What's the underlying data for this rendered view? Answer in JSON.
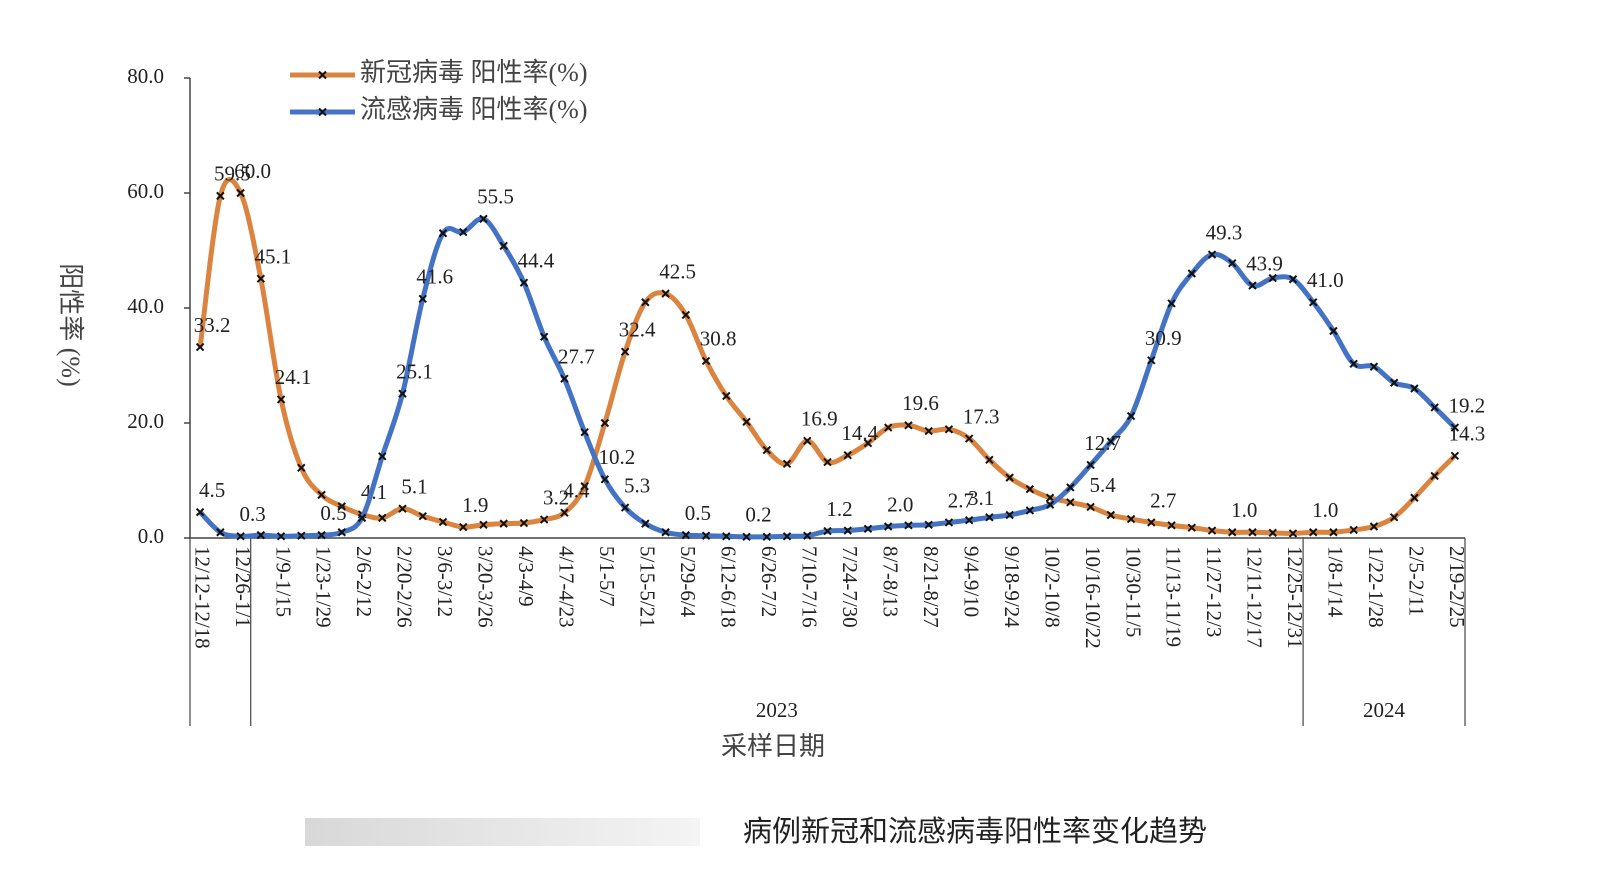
{
  "chart_data": {
    "type": "line",
    "title": "病例新冠和流感病毒阳性率变化趋势",
    "y_label": "阳性率 (%)",
    "x_label": "采样日期",
    "x_groups": [
      "2023",
      "2024"
    ],
    "categories": [
      "12/12-12/18",
      null,
      "12/26-1/1",
      null,
      "1/9-1/15",
      null,
      "1/23-1/29",
      null,
      "2/6-2/12",
      null,
      "2/20-2/26",
      null,
      "3/6-3/12",
      null,
      "3/20-3/26",
      null,
      "4/3-4/9",
      null,
      "4/17-4/23",
      null,
      "5/1-5/7",
      null,
      "5/15-5/21",
      null,
      "5/29-6/4",
      null,
      "6/12-6/18",
      null,
      "6/26-7/2",
      null,
      "7/10-7/16",
      null,
      "7/24-7/30",
      null,
      "8/7-8/13",
      null,
      "8/21-8/27",
      null,
      "9/4-9/10",
      null,
      "9/18-9/24",
      null,
      "10/2-10/8",
      null,
      "10/16-10/22",
      null,
      "10/30-11/5",
      null,
      "11/13-11/19",
      null,
      "11/27-12/3",
      null,
      "12/11-12/17",
      null,
      "12/25-12/31",
      null,
      "1/8-1/14",
      null,
      "1/22-1/28",
      null,
      "2/5-2/11",
      null,
      "2/19-2/25"
    ],
    "ylim": [
      0,
      80
    ],
    "yticks": [
      {
        "value": 0,
        "label": "0.0"
      },
      {
        "value": 20,
        "label": "20.0"
      },
      {
        "value": 40,
        "label": "40.0"
      },
      {
        "value": 60,
        "label": "60.0"
      },
      {
        "value": 80,
        "label": "80.0"
      }
    ],
    "legend": "top-left",
    "series": [
      {
        "name": "新冠病毒 阳性率(%)",
        "color": "#db8440",
        "values": [
          33.2,
          59.5,
          60.0,
          45.1,
          24.1,
          12.2,
          7.5,
          5.5,
          4.1,
          3.5,
          5.1,
          3.8,
          2.8,
          1.9,
          2.3,
          2.5,
          2.6,
          3.2,
          4.4,
          9.0,
          20.0,
          32.4,
          41.0,
          42.5,
          38.8,
          30.8,
          24.7,
          20.2,
          15.3,
          12.9,
          16.9,
          13.2,
          14.4,
          16.5,
          19.2,
          19.6,
          18.6,
          18.9,
          17.3,
          13.6,
          10.5,
          8.5,
          7.0,
          6.2,
          5.4,
          4.0,
          3.3,
          2.7,
          2.2,
          1.8,
          1.3,
          1.0,
          1.0,
          0.9,
          0.8,
          1.0,
          1.0,
          1.4,
          2.0,
          3.6,
          7.0,
          10.8,
          14.3
        ],
        "value_labels": [
          "33.2",
          "59.5",
          "60.0",
          "45.1",
          "24.1",
          null,
          null,
          null,
          "4.1",
          null,
          "5.1",
          null,
          null,
          "1.9",
          null,
          null,
          null,
          "3.2",
          "4.4",
          null,
          null,
          "32.4",
          null,
          "42.5",
          null,
          "30.8",
          null,
          null,
          null,
          null,
          "16.9",
          null,
          "14.4",
          null,
          null,
          "19.6",
          null,
          null,
          "17.3",
          null,
          null,
          null,
          null,
          null,
          "5.4",
          null,
          null,
          "2.7",
          null,
          null,
          null,
          "1.0",
          null,
          null,
          null,
          "1.0",
          null,
          null,
          null,
          null,
          null,
          null,
          "14.3"
        ]
      },
      {
        "name": "流感病毒 阳性率(%)",
        "color": "#4472c4",
        "values": [
          4.5,
          1.0,
          0.3,
          0.5,
          0.3,
          0.4,
          0.5,
          1.0,
          3.5,
          14.2,
          25.1,
          41.6,
          53.0,
          53.2,
          55.5,
          50.8,
          44.4,
          35.0,
          27.7,
          18.4,
          10.2,
          5.3,
          2.5,
          1.0,
          0.5,
          0.4,
          0.3,
          0.2,
          0.2,
          0.3,
          0.4,
          1.2,
          1.3,
          1.6,
          2.0,
          2.2,
          2.3,
          2.7,
          3.1,
          3.6,
          4.0,
          4.8,
          5.8,
          8.8,
          12.7,
          16.8,
          21.2,
          30.9,
          40.8,
          46.0,
          49.3,
          47.8,
          43.9,
          45.2,
          45.0,
          41.0,
          36.0,
          30.3,
          29.8,
          27.0,
          26.0,
          22.7,
          19.2
        ],
        "value_labels": [
          "4.5",
          null,
          "0.3",
          null,
          null,
          null,
          "0.5",
          null,
          null,
          null,
          "25.1",
          "41.6",
          null,
          null,
          "55.5",
          null,
          "44.4",
          null,
          "27.7",
          null,
          "10.2",
          "5.3",
          null,
          null,
          "0.5",
          null,
          null,
          "0.2",
          null,
          null,
          null,
          "1.2",
          null,
          null,
          "2.0",
          null,
          null,
          "2.7",
          "3.1",
          null,
          null,
          null,
          null,
          null,
          "12.7",
          null,
          null,
          "30.9",
          null,
          null,
          "49.3",
          null,
          "43.9",
          null,
          null,
          "41.0",
          null,
          null,
          null,
          null,
          null,
          null,
          "19.2"
        ]
      }
    ]
  }
}
